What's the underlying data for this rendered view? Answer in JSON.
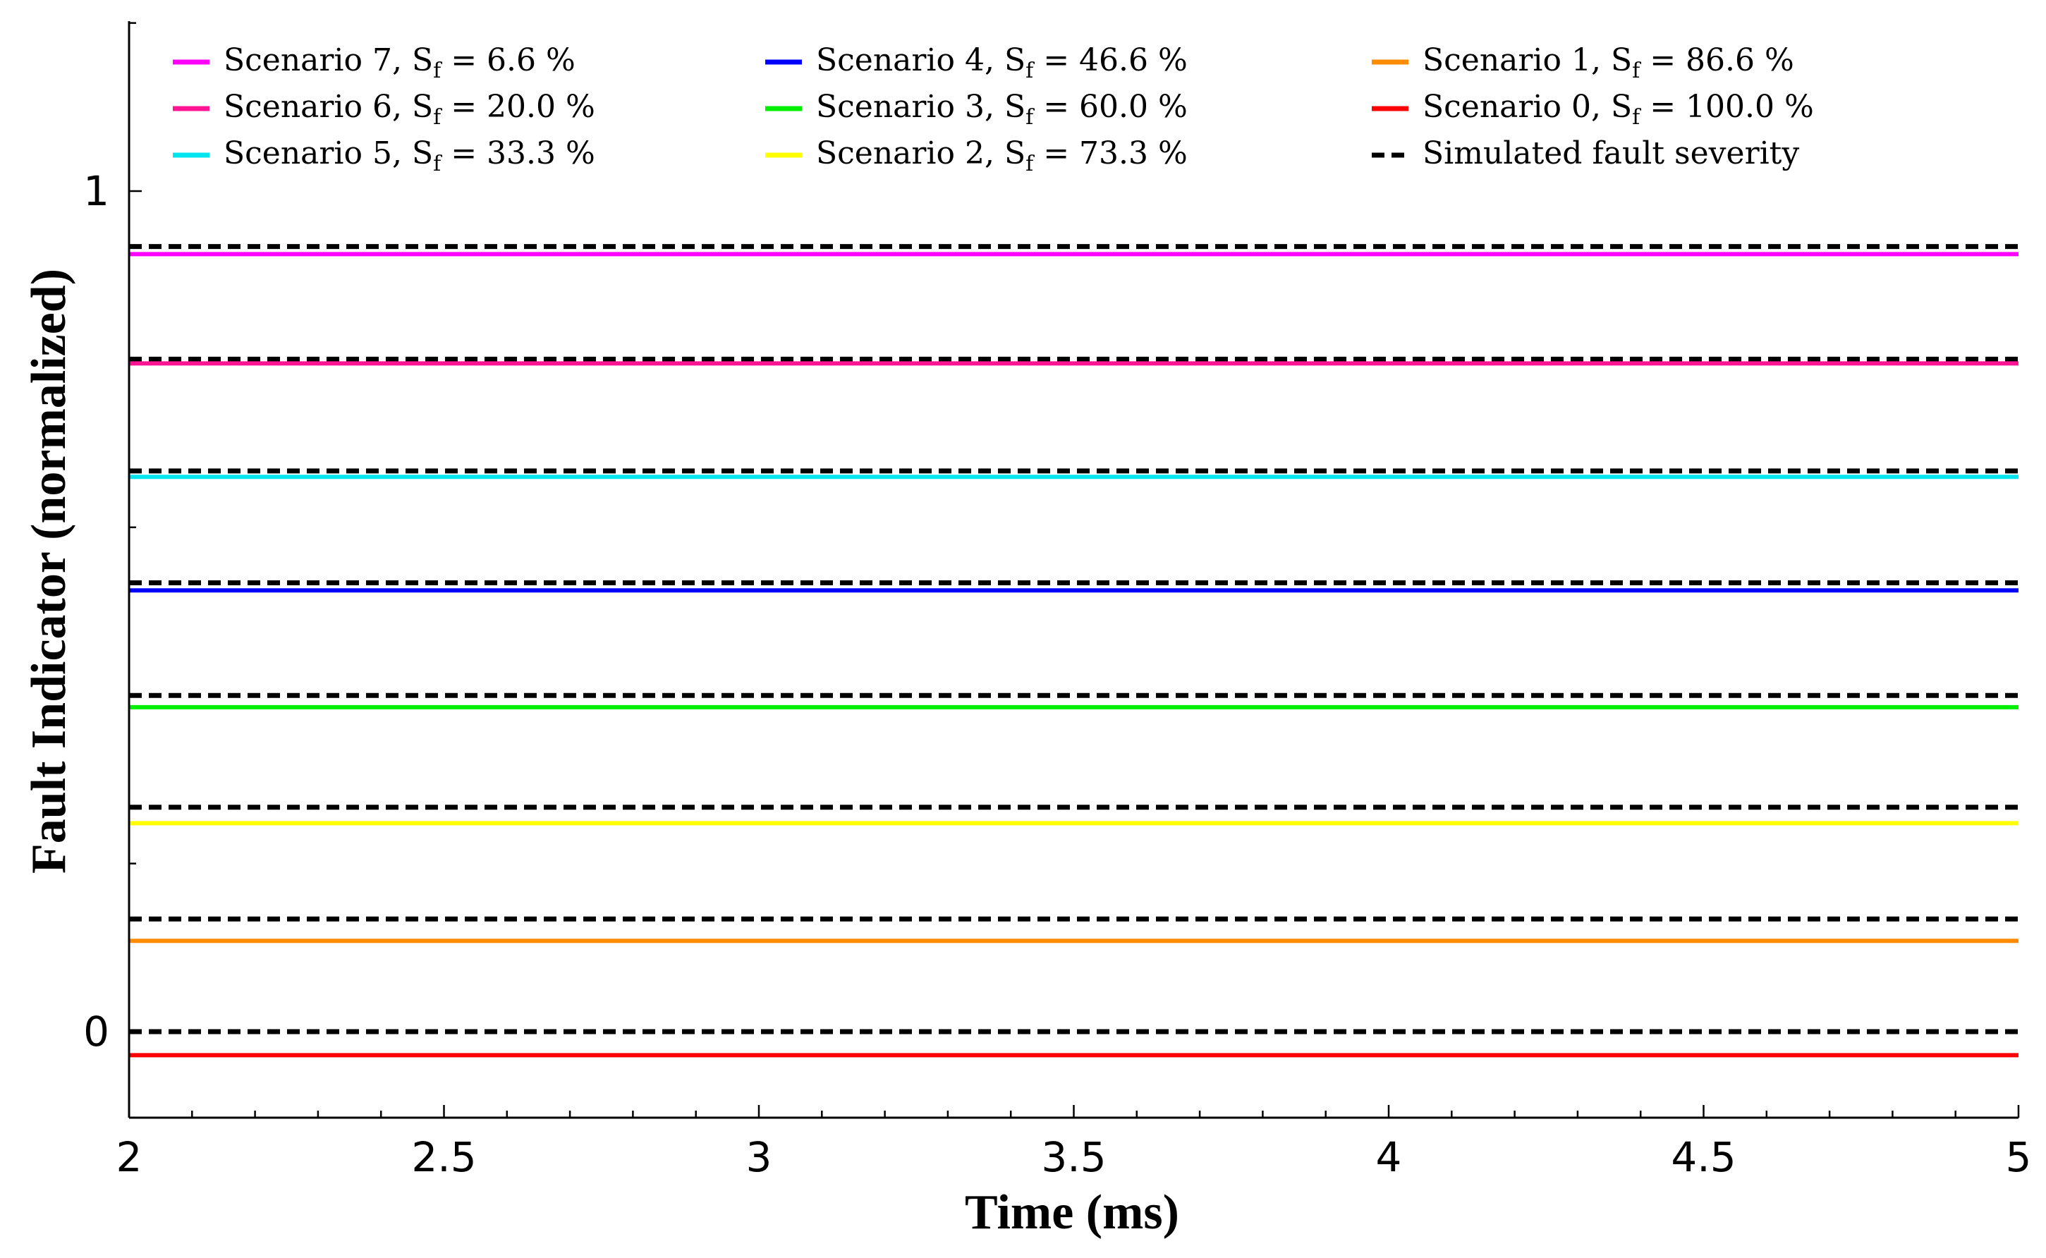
{
  "chart_data": {
    "type": "line",
    "xlabel": "Time (ms)",
    "ylabel": "Fault Indicator (normalized)",
    "xlim": [
      2,
      5
    ],
    "ylim": [
      -0.1,
      1.2
    ],
    "x_ticks": [
      2,
      2.5,
      3,
      3.5,
      4,
      4.5,
      5
    ],
    "x_tick_labels": [
      "2",
      "2.5",
      "3",
      "3.5",
      "4",
      "4.5",
      "5"
    ],
    "y_ticks": [
      0,
      1
    ],
    "y_tick_labels": [
      "0",
      "1"
    ],
    "legend_position": "top",
    "series": [
      {
        "name": "Scenario 7, Sf = 6.6 %",
        "prefix": "Scenario 7, S",
        "sub": "f",
        "suffix": " = 6.6 %",
        "color": "#ff00ff",
        "dashed": false,
        "x": [
          2,
          5
        ],
        "y": [
          0.925,
          0.925
        ]
      },
      {
        "name": "Scenario 6, Sf = 20.0 %",
        "prefix": "Scenario 6, S",
        "sub": "f",
        "suffix": " = 20.0 %",
        "color": "#ff1493",
        "dashed": false,
        "x": [
          2,
          5
        ],
        "y": [
          0.795,
          0.795
        ]
      },
      {
        "name": "Scenario 5, Sf = 33.3 %",
        "prefix": "Scenario 5, S",
        "sub": "f",
        "suffix": " = 33.3 %",
        "color": "#00e5ee",
        "dashed": false,
        "x": [
          2,
          5
        ],
        "y": [
          0.66,
          0.66
        ]
      },
      {
        "name": "Scenario 4, Sf = 46.6 %",
        "prefix": "Scenario 4, S",
        "sub": "f",
        "suffix": " = 46.6 %",
        "color": "#0000ff",
        "dashed": false,
        "x": [
          2,
          5
        ],
        "y": [
          0.525,
          0.525
        ]
      },
      {
        "name": "Scenario 3, Sf = 60.0 %",
        "prefix": "Scenario 3, S",
        "sub": "f",
        "suffix": " = 60.0 %",
        "color": "#00ee00",
        "dashed": false,
        "x": [
          2,
          5
        ],
        "y": [
          0.386,
          0.386
        ]
      },
      {
        "name": "Scenario 2, Sf = 73.3 %",
        "prefix": "Scenario 2, S",
        "sub": "f",
        "suffix": " = 73.3 %",
        "color": "#ffff00",
        "dashed": false,
        "x": [
          2,
          5
        ],
        "y": [
          0.248,
          0.248
        ]
      },
      {
        "name": "Scenario 1, Sf = 86.6 %",
        "prefix": "Scenario 1, S",
        "sub": "f",
        "suffix": " = 86.6 %",
        "color": "#ff8c00",
        "dashed": false,
        "x": [
          2,
          5
        ],
        "y": [
          0.108,
          0.108
        ]
      },
      {
        "name": "Scenario 0, Sf = 100.0 %",
        "prefix": "Scenario 0, S",
        "sub": "f",
        "suffix": " = 100.0 %",
        "color": "#ff0000",
        "dashed": false,
        "x": [
          2,
          5
        ],
        "y": [
          -0.028,
          -0.028
        ]
      }
    ],
    "reference": {
      "name": "Simulated fault severity",
      "prefix": "Simulated fault severity",
      "sub": "",
      "suffix": "",
      "color": "#000000",
      "dashed": true,
      "levels": [
        0.934,
        0.8,
        0.667,
        0.534,
        0.4,
        0.267,
        0.134,
        0.0
      ]
    },
    "legend_order": [
      [
        "Scenario 7, Sf = 6.6 %",
        "Scenario 4, Sf = 46.6 %",
        "Scenario 1, Sf = 86.6 %"
      ],
      [
        "Scenario 6, Sf = 20.0 %",
        "Scenario 3, Sf = 60.0 %",
        "Scenario 0, Sf = 100.0 %"
      ],
      [
        "Scenario 5, Sf = 33.3 %",
        "Scenario 2, Sf = 73.3 %",
        "Simulated fault severity"
      ]
    ]
  }
}
